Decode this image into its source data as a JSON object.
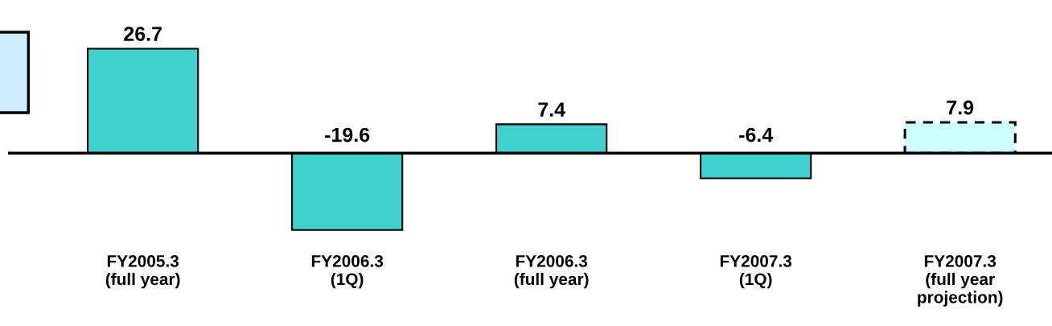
{
  "chart_data": {
    "type": "bar",
    "categories": [
      "FY2005.3\n(full year)",
      "FY2006.3\n(1Q)",
      "FY2006.3\n(full year)",
      "FY2007.3\n(1Q)",
      "FY2007.3\n(full year\nprojection)"
    ],
    "series": [
      {
        "color": "#40d0d0",
        "line_style": "solid",
        "values": [
          26.7,
          -19.6,
          7.4,
          -6.4,
          null
        ]
      },
      {
        "color": "#ccffff",
        "line_style": "dashed",
        "values": [
          null,
          null,
          null,
          null,
          7.9
        ]
      }
    ],
    "data_labels": true,
    "grid": false
  }
}
